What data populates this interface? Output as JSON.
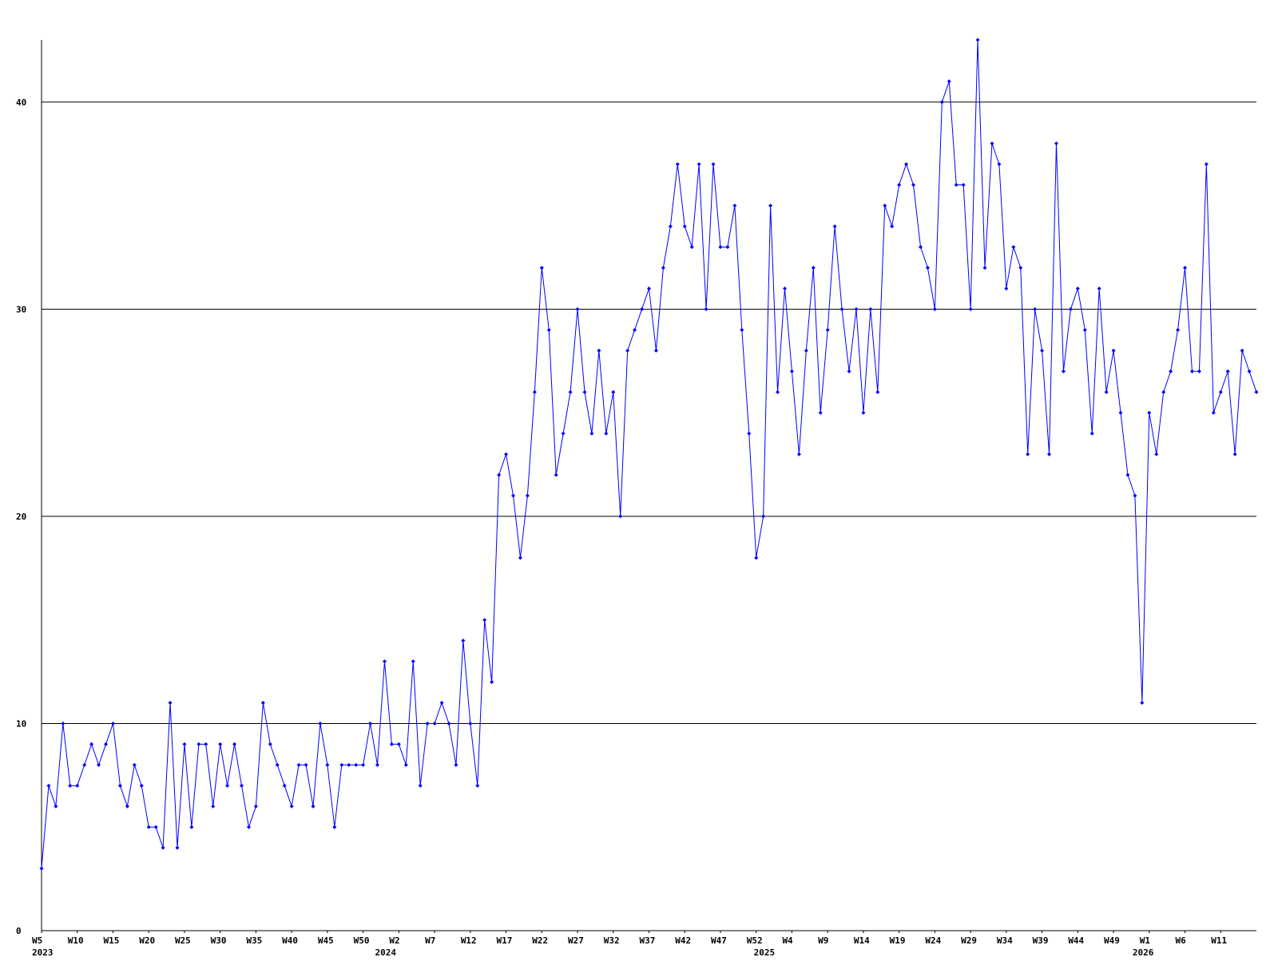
{
  "chart_data": {
    "type": "line",
    "color": "#0000ff",
    "grid": true,
    "ylim": [
      0,
      43
    ],
    "yticks": [
      0,
      10,
      20,
      30,
      40
    ],
    "categories": [
      "W5",
      null,
      null,
      null,
      null,
      "W10",
      null,
      null,
      null,
      null,
      "W15",
      null,
      null,
      null,
      null,
      "W20",
      null,
      null,
      null,
      null,
      "W25",
      null,
      null,
      null,
      null,
      "W30",
      null,
      null,
      null,
      null,
      "W35",
      null,
      null,
      null,
      null,
      "W40",
      null,
      null,
      null,
      null,
      "W45",
      null,
      null,
      null,
      null,
      "W50",
      null,
      null,
      null,
      null,
      "W2",
      null,
      null,
      null,
      null,
      "W7",
      null,
      null,
      null,
      null,
      "W12",
      null,
      null,
      null,
      null,
      "W17",
      null,
      null,
      null,
      null,
      "W22",
      null,
      null,
      null,
      null,
      "W27",
      null,
      null,
      null,
      null,
      "W32",
      null,
      null,
      null,
      null,
      "W37",
      null,
      null,
      null,
      null,
      "W42",
      null,
      null,
      null,
      null,
      "W47",
      null,
      null,
      null,
      null,
      "W52",
      null,
      null,
      null,
      null,
      "W4",
      null,
      null,
      null,
      null,
      "W9",
      null,
      null,
      null,
      null,
      "W14",
      null,
      null,
      null,
      null,
      "W19",
      null,
      null,
      null,
      null,
      "W24",
      null,
      null,
      null,
      null,
      "W29",
      null,
      null,
      null,
      null,
      "W34",
      null,
      null,
      null,
      null,
      "W39",
      null,
      null,
      null,
      null,
      "W44",
      null,
      null,
      null,
      null,
      "W49",
      null,
      null,
      null,
      null,
      "W1",
      null,
      null,
      null,
      null,
      "W6",
      null,
      null,
      null,
      null,
      "W11",
      null,
      null,
      null,
      null,
      null
    ],
    "x_years": [
      "2023",
      null,
      null,
      null,
      null,
      null,
      null,
      null,
      null,
      null,
      null,
      null,
      null,
      null,
      null,
      null,
      null,
      null,
      null,
      null,
      null,
      null,
      null,
      null,
      null,
      null,
      null,
      null,
      null,
      null,
      null,
      null,
      null,
      null,
      null,
      null,
      null,
      null,
      null,
      null,
      null,
      null,
      null,
      null,
      null,
      null,
      null,
      null,
      "2024",
      null,
      null,
      null,
      null,
      null,
      null,
      null,
      null,
      null,
      null,
      null,
      null,
      null,
      null,
      null,
      null,
      null,
      null,
      null,
      null,
      null,
      null,
      null,
      null,
      null,
      null,
      null,
      null,
      null,
      null,
      null,
      null,
      null,
      null,
      null,
      null,
      null,
      null,
      null,
      null,
      null,
      null,
      null,
      null,
      null,
      null,
      null,
      null,
      null,
      null,
      null,
      null,
      "2025",
      null,
      null,
      null,
      null,
      null,
      null,
      null,
      null,
      null,
      null,
      null,
      null,
      null,
      null,
      null,
      null,
      null,
      null,
      null,
      null,
      null,
      null,
      null,
      null,
      null,
      null,
      null,
      null,
      null,
      null,
      null,
      null,
      null,
      null,
      null,
      null,
      null,
      null,
      null,
      null,
      null,
      null,
      null,
      null,
      null,
      null,
      null,
      null,
      null,
      null,
      null,
      null,
      "2026",
      null,
      null,
      null,
      null,
      null,
      null,
      null,
      null,
      null,
      null,
      null,
      null,
      null,
      null,
      null,
      null
    ],
    "values": [
      3,
      7,
      6,
      10,
      7,
      7,
      8,
      9,
      8,
      9,
      10,
      7,
      6,
      8,
      7,
      5,
      5,
      4,
      11,
      4,
      9,
      5,
      9,
      9,
      6,
      9,
      7,
      9,
      7,
      5,
      6,
      11,
      9,
      8,
      7,
      6,
      8,
      8,
      6,
      10,
      8,
      5,
      8,
      8,
      8,
      8,
      10,
      8,
      13,
      9,
      9,
      8,
      13,
      7,
      10,
      10,
      11,
      10,
      8,
      14,
      10,
      7,
      15,
      12,
      22,
      23,
      21,
      18,
      21,
      26,
      32,
      29,
      22,
      24,
      26,
      30,
      26,
      24,
      28,
      24,
      26,
      20,
      28,
      29,
      30,
      31,
      28,
      32,
      34,
      37,
      34,
      33,
      37,
      30,
      37,
      33,
      33,
      35,
      29,
      24,
      18,
      20,
      35,
      26,
      31,
      27,
      23,
      28,
      32,
      25,
      29,
      34,
      30,
      27,
      30,
      25,
      30,
      26,
      35,
      34,
      36,
      37,
      36,
      33,
      32,
      30,
      40,
      41,
      36,
      36,
      30,
      43,
      32,
      38,
      37,
      31,
      33,
      32,
      23,
      30,
      28,
      23,
      38,
      27,
      30,
      31,
      29,
      24,
      31,
      26,
      28,
      25,
      22,
      21,
      11,
      25,
      23,
      26,
      27,
      29,
      32,
      27,
      27,
      37,
      25,
      26,
      27,
      23,
      28,
      27,
      26
    ]
  }
}
